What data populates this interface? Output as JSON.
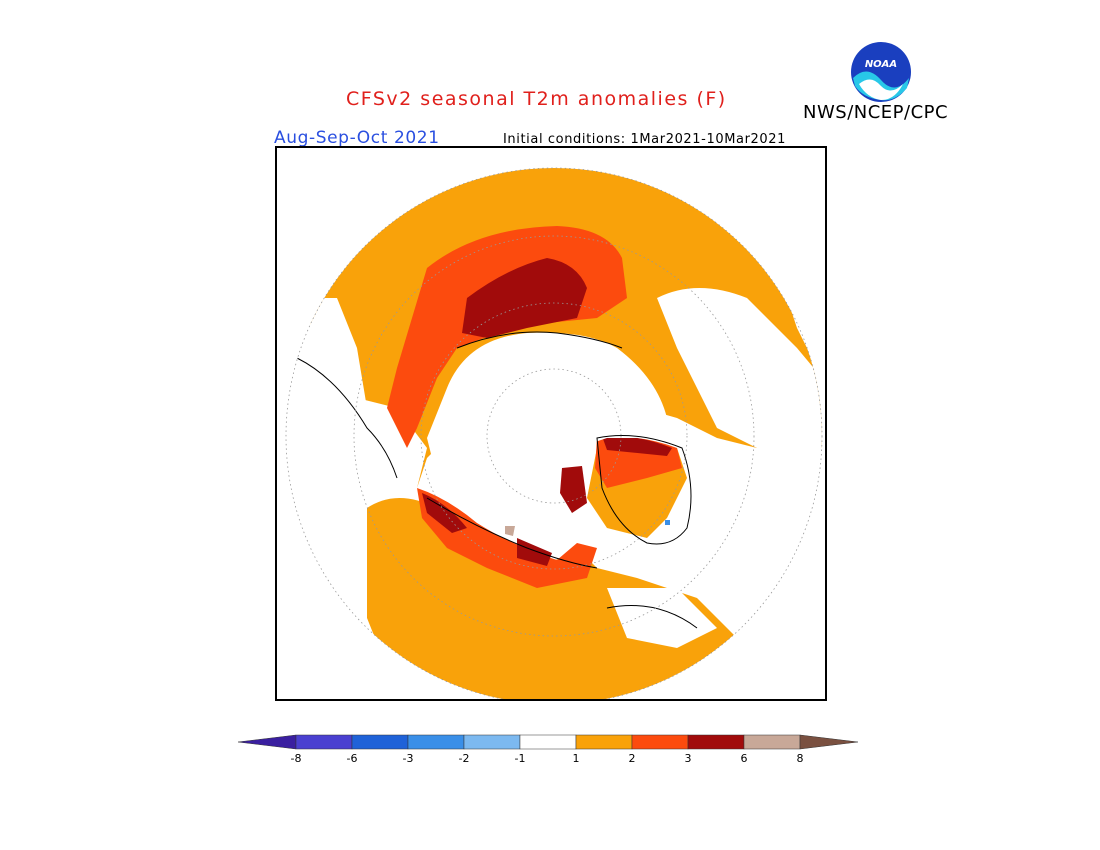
{
  "header": {
    "title": "CFSv2 seasonal T2m anomalies (F)",
    "org": "NWS/NCEP/CPC",
    "season": "Aug-Sep-Oct 2021",
    "initial_conditions": "Initial conditions: 1Mar2021-10Mar2021",
    "logo_text": "NOAA"
  },
  "colorbar": {
    "labels": [
      "-8",
      "-6",
      "-3",
      "-2",
      "-1",
      "1",
      "2",
      "3",
      "6",
      "8"
    ],
    "colors": [
      "#3a1fa0",
      "#4a40d0",
      "#1f62d8",
      "#3a8fe8",
      "#7cb9f0",
      "#ffffff",
      "#f9a20a",
      "#fc4b0e",
      "#a10b0b",
      "#c8a898",
      "#7a5040"
    ]
  },
  "legend_colors": {
    "anom_1_2": "#f9a20a",
    "anom_2_3": "#fc4b0e",
    "anom_3_6": "#a10b0b",
    "anom_6_8": "#c8a898",
    "anom_neg": "#3a8fe8"
  }
}
